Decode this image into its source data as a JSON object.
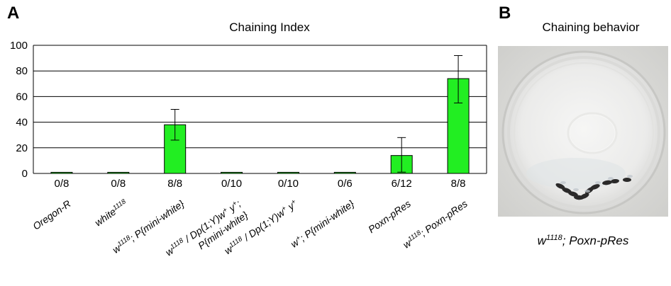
{
  "panels": {
    "a_letter": "A",
    "b_letter": "B"
  },
  "chart_data": {
    "type": "bar",
    "title": "Chaining Index",
    "xlabel": "",
    "ylabel": "",
    "ylim": [
      0,
      100
    ],
    "yticks": [
      0,
      20,
      40,
      60,
      80,
      100
    ],
    "grid": true,
    "bar_color": "#22ee22",
    "categories": [
      {
        "parts": [
          {
            "t": "Oregon-R"
          }
        ]
      },
      {
        "parts": [
          {
            "t": "white"
          },
          {
            "t": "1118",
            "sup": true
          }
        ]
      },
      {
        "parts": [
          {
            "t": "w"
          },
          {
            "t": "1118",
            "sup": true
          },
          {
            "t": "; P{mini-white}"
          }
        ]
      },
      {
        "parts": [
          {
            "t": "w"
          },
          {
            "t": "1118",
            "sup": true
          },
          {
            "t": " / Dp(1;Y)w"
          },
          {
            "t": "+",
            "sup": true
          },
          {
            "t": " y"
          },
          {
            "t": "+",
            "sup": true
          },
          {
            "t": ";"
          }
        ],
        "line2": "P{mini-white}"
      },
      {
        "parts": [
          {
            "t": "w"
          },
          {
            "t": "1118",
            "sup": true
          },
          {
            "t": " / Dp(1;Y)w"
          },
          {
            "t": "+",
            "sup": true
          },
          {
            "t": " y"
          },
          {
            "t": "+",
            "sup": true
          }
        ]
      },
      {
        "parts": [
          {
            "t": "w"
          },
          {
            "t": "+",
            "sup": true
          },
          {
            "t": "; P{mini-white}"
          }
        ]
      },
      {
        "parts": [
          {
            "t": "Poxn-pRes"
          }
        ]
      },
      {
        "parts": [
          {
            "t": "w"
          },
          {
            "t": "1118",
            "sup": true
          },
          {
            "t": "; Poxn-pRes"
          }
        ]
      }
    ],
    "values": [
      0,
      0,
      38,
      0,
      0,
      0,
      14,
      74
    ],
    "error_high": [
      0,
      0,
      50,
      0,
      0,
      0,
      28,
      92
    ],
    "error_low": [
      0,
      0,
      26,
      0,
      0,
      0,
      1,
      55
    ],
    "counts": [
      "0/8",
      "0/8",
      "8/8",
      "0/10",
      "0/10",
      "0/6",
      "6/12",
      "8/8"
    ]
  },
  "photo": {
    "title": "Chaining behavior",
    "caption_base": "w",
    "caption_sup": "1118",
    "caption_rest": "; Poxn-pRes"
  }
}
